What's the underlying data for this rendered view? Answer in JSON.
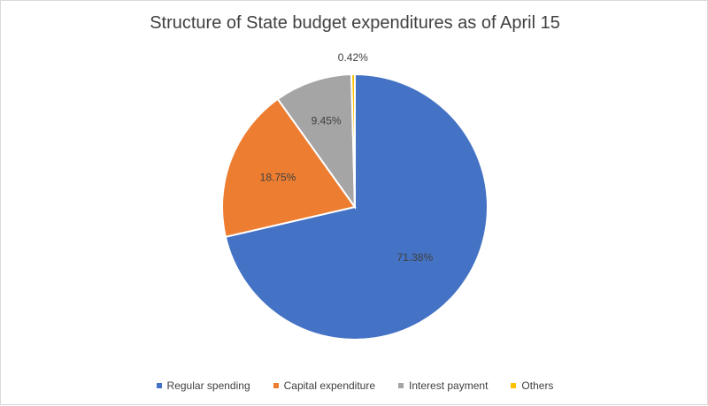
{
  "chart_data": {
    "type": "pie",
    "title": "Structure of State budget expenditures as of April 15",
    "categories": [
      "Regular spending",
      "Capital expenditure",
      "Interest payment",
      "Others"
    ],
    "values": [
      71.38,
      18.75,
      9.45,
      0.42
    ],
    "data_labels": [
      "71.38%",
      "18.75%",
      "9.45%",
      "0.42%"
    ],
    "colors": [
      "#4472C4",
      "#ED7D31",
      "#A5A5A5",
      "#FFC000"
    ],
    "legend_position": "bottom"
  }
}
